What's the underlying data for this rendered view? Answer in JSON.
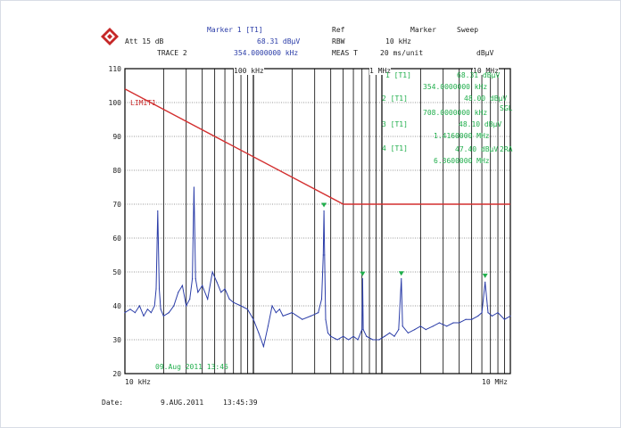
{
  "header": {
    "marker_label": "Marker 1 [T1]",
    "marker_level": "68.31 dBµV",
    "marker_freq": "354.0000000 kHz",
    "ref_label": "Ref",
    "marker_func": "Marker",
    "sweep_label": "Sweep",
    "att": "Att 15 dB",
    "rbw_label": "RBW",
    "rbw_value": "10 kHz",
    "trace_label": "TRACE 2",
    "meas_label": "MEAS T",
    "meas_time": "20 ms/unit",
    "unit": "dBµV"
  },
  "markers": [
    {
      "label": "1 [T1]",
      "level": "68.31 dBµV",
      "freq": "354.0000000 kHz",
      "tag": ""
    },
    {
      "label": "2 [T1]",
      "level": "48.00 dBµV",
      "freq": "708.0000000 kHz",
      "tag": "SGL"
    },
    {
      "label": "3 [T1]",
      "level": "48.10 dBµV",
      "freq": "1.4160000 MHz",
      "tag": ""
    },
    {
      "label": "4 [T1]",
      "level": "47.40 dBµV",
      "freq": "6.3600000 MHz",
      "tag": "2RA"
    }
  ],
  "footer": {
    "date_label": "Date:",
    "date_value": "9.AUG.2011",
    "time_value": "13:45:39"
  },
  "colors": {
    "trace": "#2b3da8",
    "limit": "#d32f2f",
    "marker": "#1fae4b",
    "grid": "#000000"
  },
  "chart_data": {
    "type": "line",
    "x_scale": "log",
    "xlim_hz": [
      10000,
      10000000
    ],
    "ylim": [
      20,
      110
    ],
    "y_ticks": [
      20,
      30,
      40,
      50,
      60,
      70,
      80,
      90,
      100,
      110
    ],
    "x_top_labels": [
      "100 kHz",
      "1 MHz",
      "10 MHz"
    ],
    "x_start": "10 kHz",
    "x_stop": "10 MHz",
    "ylabel": "dBµV",
    "grid": true,
    "limit_label": "LIMIT1",
    "plot_timestamp": "09.Aug 2011 13:45",
    "limit_line": {
      "x_hz": [
        10000,
        500000,
        10000000
      ],
      "y": [
        104,
        70,
        70
      ]
    },
    "series": [
      {
        "x_hz": [
          10000,
          11000,
          12000,
          13000,
          14000,
          15000,
          16000,
          17000,
          17500,
          18000,
          18500,
          19000,
          20000,
          22000,
          24000,
          26000,
          28000,
          30000,
          32000,
          33500,
          34500,
          35500,
          37000,
          40000,
          44000,
          48000,
          52000,
          56000,
          60000,
          65000,
          70000,
          80000,
          90000,
          100000,
          110000,
          120000,
          130000,
          140000,
          150000,
          160000,
          170000,
          200000,
          240000,
          280000,
          320000,
          340000,
          350000,
          354000,
          358000,
          365000,
          380000,
          400000,
          450000,
          500000,
          550000,
          600000,
          650000,
          700000,
          708000,
          716000,
          760000,
          850000,
          950000,
          1050000,
          1150000,
          1250000,
          1350000,
          1416000,
          1450000,
          1600000,
          1800000,
          2000000,
          2200000,
          2500000,
          2800000,
          3200000,
          3600000,
          4000000,
          4500000,
          5000000,
          5600000,
          6000000,
          6360000,
          6700000,
          7200000,
          8000000,
          9000000,
          10000000
        ],
        "y": [
          38,
          39,
          38,
          40,
          37,
          39,
          38,
          40,
          45,
          68,
          45,
          39,
          37,
          38,
          40,
          44,
          46,
          40,
          42,
          48,
          75,
          48,
          44,
          46,
          42,
          50,
          47,
          44,
          45,
          42,
          41,
          40,
          39,
          36,
          32,
          28,
          34,
          40,
          38,
          39,
          37,
          38,
          36,
          37,
          38,
          42,
          55,
          68,
          55,
          36,
          32,
          31,
          30,
          31,
          30,
          31,
          30,
          33,
          48,
          33,
          31,
          30,
          30,
          31,
          32,
          31,
          33,
          48,
          34,
          32,
          33,
          34,
          33,
          34,
          35,
          34,
          35,
          35,
          36,
          36,
          37,
          38,
          47,
          38,
          37,
          38,
          36,
          37
        ]
      }
    ]
  }
}
